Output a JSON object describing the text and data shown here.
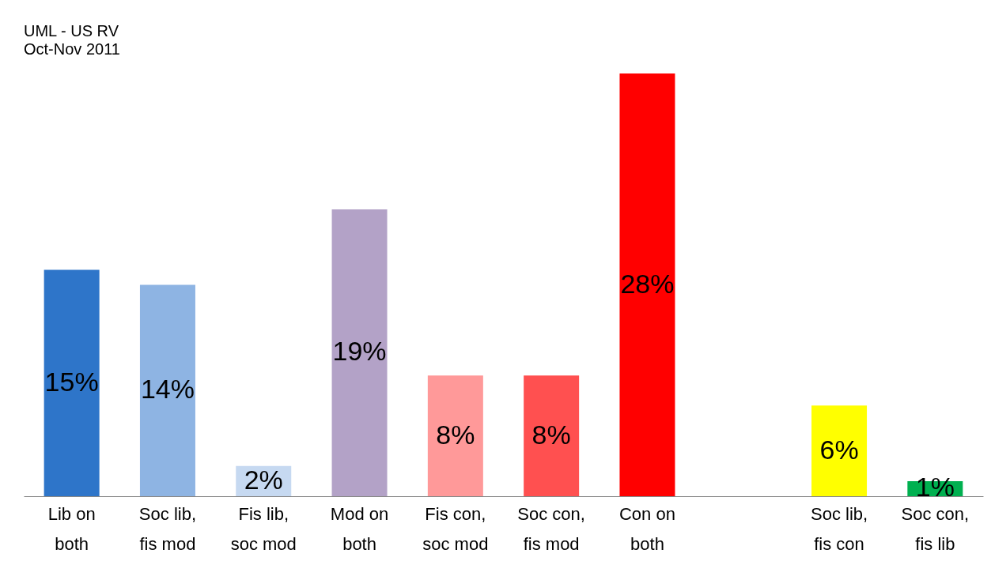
{
  "chart_data": {
    "type": "bar",
    "title": "UML - US RV",
    "subtitle": "Oct-Nov 2011",
    "categories": [
      "Lib on\nboth",
      "Soc lib,\nfis mod",
      "Fis lib,\nsoc mod",
      "Mod on\nboth",
      "Fis con,\nsoc mod",
      "Soc con,\nfis mod",
      "Con on\nboth",
      null,
      "Soc lib,\nfis con",
      "Soc con,\nfis lib"
    ],
    "values": [
      15,
      14,
      2,
      19,
      8,
      8,
      28,
      null,
      6,
      1
    ],
    "colors": [
      "#2e75c9",
      "#8eb4e3",
      "#c6d9f1",
      "#b3a2c7",
      "#ff9999",
      "#ff5050",
      "#ff0000",
      "#ffffff",
      "#ffff00",
      "#00b050"
    ],
    "value_labels": [
      "15%",
      "14%",
      "2%",
      "19%",
      "8%",
      "8%",
      "28%",
      null,
      "6%",
      "1%"
    ],
    "grid": false
  }
}
